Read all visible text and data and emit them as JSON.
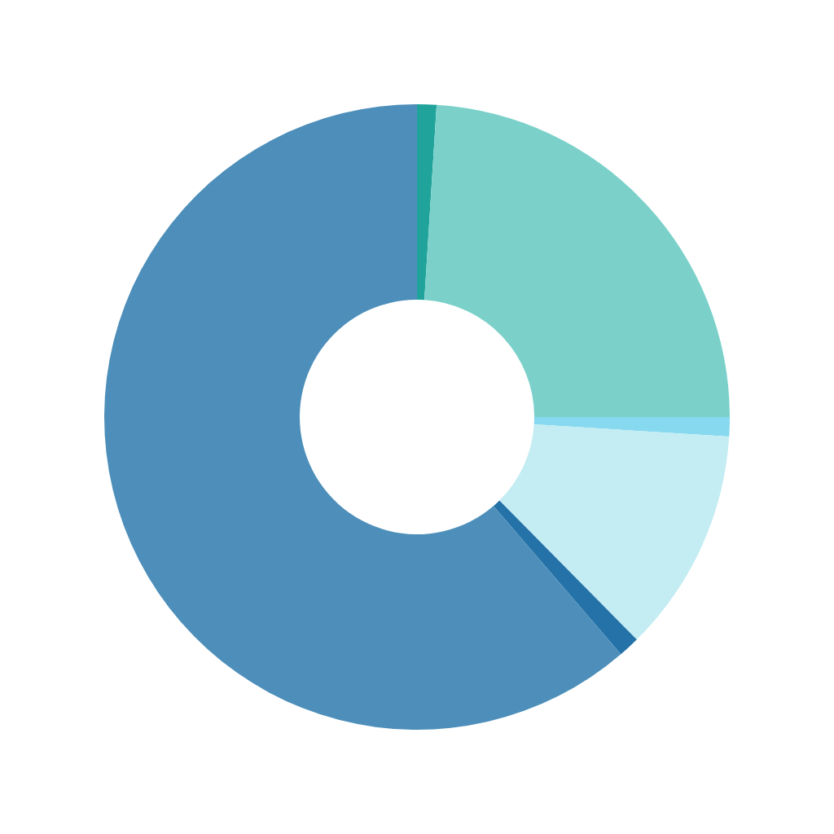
{
  "chart_data": {
    "type": "donut",
    "categories": [
      null,
      null,
      null,
      null,
      null,
      null
    ],
    "values": [
      1,
      24,
      1,
      11.6,
      1.1,
      61.3
    ],
    "colors": [
      "#20a39a",
      "#7bd1ca",
      "#86d9ef",
      "#c3ecf3",
      "#2472a8",
      "#4d8fba"
    ],
    "legend": false
  }
}
